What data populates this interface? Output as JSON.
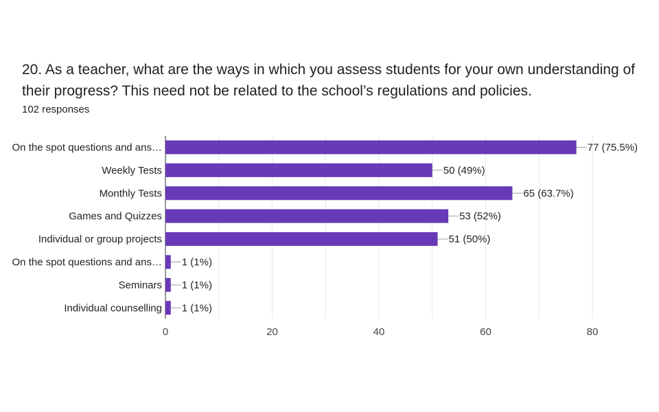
{
  "question": {
    "title": "20. As a teacher, what are the ways in which you assess students for your own understanding of their progress? This need not be related to the school’s regulations and policies.",
    "responses": "102 responses"
  },
  "colors": {
    "bar": "#673ab7",
    "grid": "#e6e6e6",
    "axis": "#333333",
    "leader": "#9e9e9e"
  },
  "chart_data": {
    "type": "bar",
    "orientation": "horizontal",
    "categories": [
      "On the spot questions and ans…",
      "Weekly Tests",
      "Monthly Tests",
      "Games and Quizzes",
      "Individual or group projects",
      "On the spot questions and ans…",
      "Seminars",
      "Individual counselling"
    ],
    "values": [
      77,
      50,
      65,
      53,
      51,
      1,
      1,
      1
    ],
    "value_labels": [
      "77 (75.5%)",
      "50 (49%)",
      "65 (63.7%)",
      "53 (52%)",
      "51 (50%)",
      "1 (1%)",
      "1 (1%)",
      "1 (1%)"
    ],
    "xlim": [
      0,
      80
    ],
    "xticks": [
      0,
      20,
      40,
      60,
      80
    ],
    "grid": true,
    "xlabel": "",
    "ylabel": ""
  }
}
